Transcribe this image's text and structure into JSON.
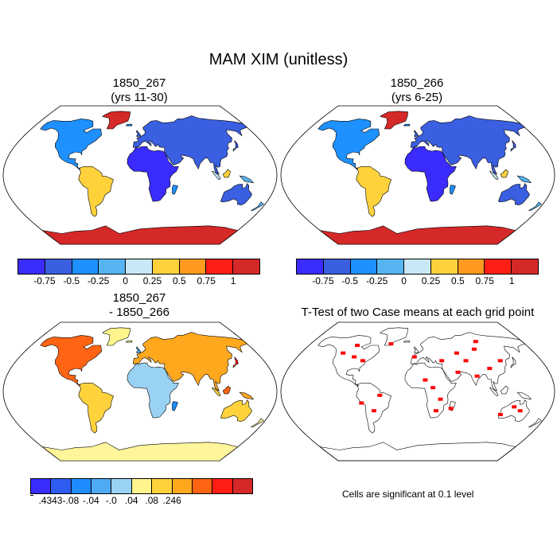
{
  "main_title": "MAM XIM (unitless)",
  "panels": {
    "top_left": {
      "title_line1": "1850_267",
      "title_line2": "(yrs 11-30)"
    },
    "top_right": {
      "title_line1": "1850_266",
      "title_line2": "(yrs 6-25)"
    },
    "bottom_left": {
      "title_line1": "1850_267",
      "title_line2": "- 1850_266"
    },
    "bottom_right": {
      "title": "T-Test of two Case means at each grid point"
    }
  },
  "colorbar_abs": {
    "colors": [
      "#3a2cff",
      "#3a5fe0",
      "#1e90ff",
      "#56b4f0",
      "#c8e8f8",
      "#ffd23c",
      "#ff9a1e",
      "#ff1e14",
      "#d52828"
    ],
    "ticks": [
      "-0.75",
      "-0.5",
      "-0.25",
      "0",
      "0.25",
      "0.5",
      "0.75",
      "1"
    ]
  },
  "colorbar_diff": {
    "colors": [
      "#3a2cff",
      "#2f5cf0",
      "#1e8cff",
      "#4eaaf4",
      "#9ad2f4",
      "#fff58c",
      "#ffd23c",
      "#ffa81e",
      "#ff6414",
      "#ff1e14",
      "#d52828"
    ],
    "ticks": [
      ".4343",
      "-.08",
      "-.04",
      "-.0",
      ".04",
      ".08",
      ".246"
    ]
  },
  "ttest_note": "Cells are significant at 0.1 level",
  "map_colors": {
    "ocean": "#ffffff",
    "land_outline": "#000000",
    "significant": "#ff0000",
    "diff_antarctica": "#fff59a"
  }
}
